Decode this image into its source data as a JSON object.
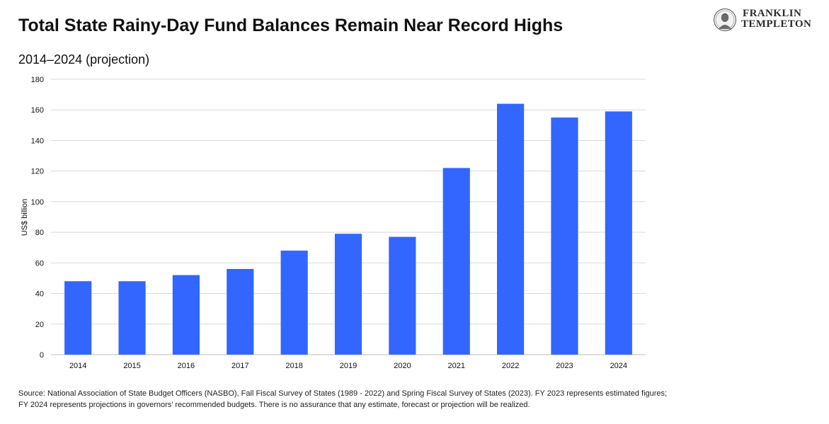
{
  "header": {
    "title": "Total State Rainy-Day Fund Balances Remain Near Record Highs",
    "subtitle": "2014–2024 (projection)"
  },
  "logo": {
    "line1": "FRANKLIN",
    "line2": "TEMPLETON",
    "icon": "portrait-seal-icon"
  },
  "chart_data": {
    "type": "bar",
    "categories": [
      "2014",
      "2015",
      "2016",
      "2017",
      "2018",
      "2019",
      "2020",
      "2021",
      "2022",
      "2023",
      "2024"
    ],
    "values": [
      48,
      48,
      52,
      56,
      68,
      79,
      77,
      122,
      164,
      155,
      159
    ],
    "ylabel": "US$ billion",
    "xlabel": "",
    "ylim": [
      0,
      180
    ],
    "yticks": [
      0,
      20,
      40,
      60,
      80,
      100,
      120,
      140,
      160,
      180
    ],
    "grid": true,
    "bar_color": "#3366ff",
    "grid_color": "#d9d9d9"
  },
  "footer": {
    "source_line1": "Source: National Association of State Budget Officers (NASBO), Fall Fiscal Survey of States (1989 - 2022) and Spring Fiscal Survey of States (2023). FY 2023 represents estimated figures;",
    "source_line2": "FY 2024 represents projections in governors’ recommended budgets. There is no assurance that any estimate, forecast or projection will be realized."
  }
}
